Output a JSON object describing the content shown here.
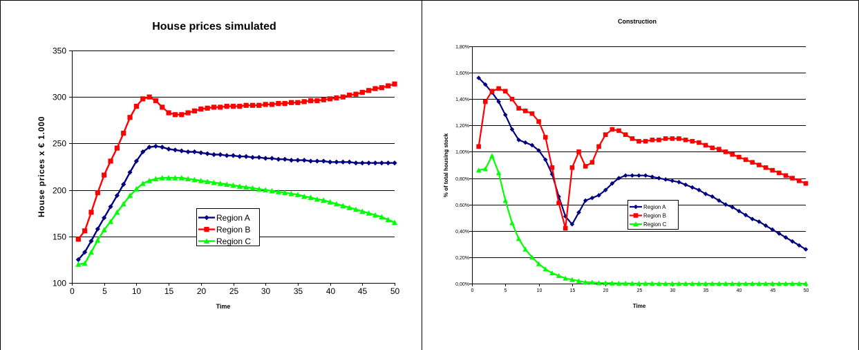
{
  "colors": {
    "region_a": "#000080",
    "region_b": "#ff0000",
    "region_c": "#00ff00"
  },
  "chart_data": [
    {
      "type": "line",
      "title": "House prices simulated",
      "xlabel": "Time",
      "ylabel": "House prices x € 1.000",
      "xlim": [
        0,
        50
      ],
      "ylim": [
        100,
        350
      ],
      "x_ticks": [
        0,
        5,
        10,
        15,
        20,
        25,
        30,
        35,
        40,
        45,
        50
      ],
      "y_ticks": [
        100,
        150,
        200,
        250,
        300,
        350
      ],
      "x_tick_labels": [
        "0",
        "5",
        "10",
        "15",
        "20",
        "25",
        "30",
        "35",
        "40",
        "45",
        "50"
      ],
      "y_tick_labels": [
        "100",
        "150",
        "200",
        "250",
        "300",
        "350"
      ],
      "grid": "horizontal",
      "legend": "center",
      "x": [
        1,
        2,
        3,
        4,
        5,
        6,
        7,
        8,
        9,
        10,
        11,
        12,
        13,
        14,
        15,
        16,
        17,
        18,
        19,
        20,
        21,
        22,
        23,
        24,
        25,
        26,
        27,
        28,
        29,
        30,
        31,
        32,
        33,
        34,
        35,
        36,
        37,
        38,
        39,
        40,
        41,
        42,
        43,
        44,
        45,
        46,
        47,
        48,
        49,
        50
      ],
      "series": [
        {
          "name": "Region A",
          "color_key": "region_a",
          "marker": "diamond",
          "values": [
            125,
            133,
            145,
            158,
            170,
            182,
            194,
            206,
            219,
            231,
            241,
            246,
            247,
            246,
            244,
            243,
            242,
            241,
            241,
            240,
            239,
            238,
            238,
            237,
            237,
            236,
            236,
            235,
            235,
            234,
            234,
            233,
            233,
            232,
            232,
            232,
            231,
            231,
            231,
            230,
            230,
            230,
            230,
            229,
            229,
            229,
            229,
            229,
            229,
            229
          ]
        },
        {
          "name": "Region B",
          "color_key": "region_b",
          "marker": "square",
          "values": [
            147,
            156,
            176,
            197,
            216,
            231,
            245,
            261,
            278,
            290,
            298,
            300,
            296,
            289,
            283,
            281,
            281,
            283,
            285,
            287,
            288,
            289,
            289,
            290,
            290,
            290,
            291,
            291,
            291,
            292,
            292,
            293,
            293,
            294,
            294,
            295,
            296,
            296,
            297,
            298,
            299,
            300,
            302,
            303,
            305,
            307,
            309,
            310,
            312,
            314
          ]
        },
        {
          "name": "Region C",
          "color_key": "region_c",
          "marker": "triangle",
          "values": [
            120,
            121,
            133,
            146,
            157,
            166,
            176,
            185,
            194,
            201,
            207,
            210,
            212,
            213,
            213,
            213,
            213,
            212,
            211,
            210,
            209,
            208,
            207,
            206,
            205,
            204,
            203,
            202,
            201,
            200,
            199,
            198,
            197,
            196,
            195,
            193,
            192,
            190,
            189,
            187,
            185,
            183,
            181,
            179,
            177,
            175,
            173,
            171,
            168,
            165
          ]
        }
      ]
    },
    {
      "type": "line",
      "title": "Construction",
      "xlabel": "Time",
      "ylabel": "% of total housing stock",
      "xlim": [
        0,
        50
      ],
      "ylim": [
        0,
        1.8
      ],
      "x_ticks": [
        0,
        5,
        10,
        15,
        20,
        25,
        30,
        35,
        40,
        45,
        50
      ],
      "y_ticks": [
        0,
        0.2,
        0.4,
        0.6,
        0.8,
        1.0,
        1.2,
        1.4,
        1.6,
        1.8
      ],
      "x_tick_labels": [
        "0",
        "5",
        "10",
        "15",
        "20",
        "25",
        "30",
        "35",
        "40",
        "45",
        "50"
      ],
      "y_tick_labels": [
        "0,00%",
        "0,20%",
        "0,40%",
        "0,60%",
        "0,80%",
        "1,00%",
        "1,20%",
        "1,40%",
        "1,60%",
        "1,80%"
      ],
      "grid": "horizontal",
      "legend": "center-left",
      "x": [
        1,
        2,
        3,
        4,
        5,
        6,
        7,
        8,
        9,
        10,
        11,
        12,
        13,
        14,
        15,
        16,
        17,
        18,
        19,
        20,
        21,
        22,
        23,
        24,
        25,
        26,
        27,
        28,
        29,
        30,
        31,
        32,
        33,
        34,
        35,
        36,
        37,
        38,
        39,
        40,
        41,
        42,
        43,
        44,
        45,
        46,
        47,
        48,
        49,
        50
      ],
      "series": [
        {
          "name": "Region A",
          "color_key": "region_a",
          "marker": "diamond",
          "values": [
            1.56,
            1.51,
            1.45,
            1.38,
            1.28,
            1.17,
            1.09,
            1.07,
            1.05,
            1.01,
            0.94,
            0.83,
            0.66,
            0.51,
            0.45,
            0.54,
            0.63,
            0.65,
            0.67,
            0.71,
            0.76,
            0.8,
            0.82,
            0.82,
            0.82,
            0.82,
            0.81,
            0.8,
            0.79,
            0.78,
            0.77,
            0.75,
            0.73,
            0.71,
            0.68,
            0.66,
            0.63,
            0.6,
            0.58,
            0.55,
            0.52,
            0.49,
            0.47,
            0.44,
            0.41,
            0.38,
            0.35,
            0.32,
            0.29,
            0.26
          ]
        },
        {
          "name": "Region B",
          "color_key": "region_b",
          "marker": "square",
          "values": [
            1.04,
            1.38,
            1.46,
            1.48,
            1.46,
            1.4,
            1.33,
            1.31,
            1.29,
            1.23,
            1.11,
            0.88,
            0.61,
            0.42,
            0.88,
            1.0,
            0.89,
            0.92,
            1.04,
            1.13,
            1.17,
            1.16,
            1.13,
            1.1,
            1.08,
            1.08,
            1.09,
            1.09,
            1.1,
            1.1,
            1.1,
            1.09,
            1.08,
            1.07,
            1.05,
            1.03,
            1.02,
            1.0,
            0.98,
            0.96,
            0.94,
            0.92,
            0.9,
            0.88,
            0.86,
            0.84,
            0.82,
            0.8,
            0.78,
            0.76
          ]
        },
        {
          "name": "Region C",
          "color_key": "region_c",
          "marker": "triangle",
          "values": [
            0.86,
            0.87,
            0.97,
            0.84,
            0.63,
            0.46,
            0.34,
            0.26,
            0.2,
            0.15,
            0.11,
            0.08,
            0.06,
            0.04,
            0.03,
            0.02,
            0.01,
            0.01,
            0.005,
            0.004,
            0.003,
            0.002,
            0.002,
            0.001,
            0.001,
            0.001,
            0.001,
            0,
            0,
            0,
            0,
            0,
            0,
            0,
            0,
            0,
            0,
            0,
            0,
            0,
            0,
            0,
            0,
            0,
            0,
            0,
            0,
            0,
            0,
            0
          ]
        }
      ]
    }
  ]
}
